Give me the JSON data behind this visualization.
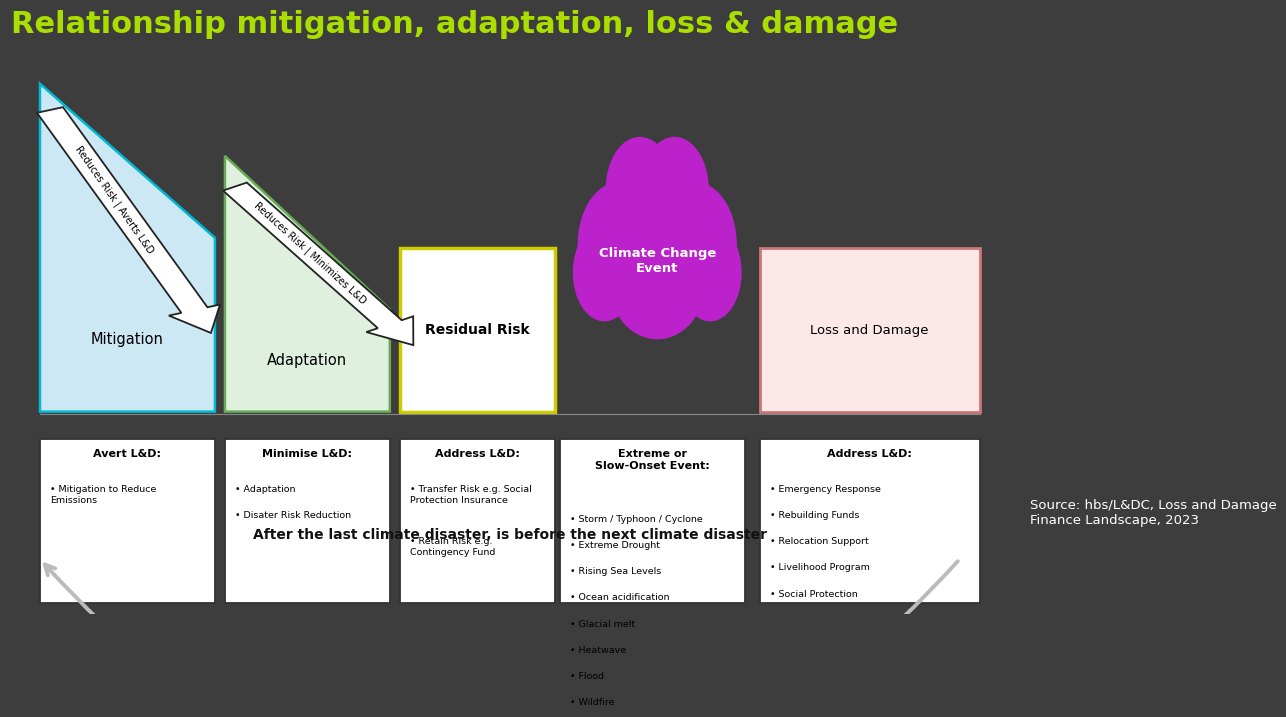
{
  "title": "Relationship mitigation, adaptation, loss & damage",
  "title_color": "#aadd00",
  "bg_color": "#3d3d3d",
  "panel_bg": "#f5f5f5",
  "source_text": "Source: hbs/L&DC, Loss and Damage\nFinance Landscape, 2023",
  "cycle_text": "After the last climate disaster, is before the next climate disaster",
  "mit_fill": "#cce8f5",
  "mit_edge": "#00b8d4",
  "adp_fill": "#dff0df",
  "adp_edge": "#66aa55",
  "res_fill": "#ffffff",
  "res_edge": "#cccc00",
  "lnd_fill": "#fde8e8",
  "lnd_edge": "#cc7777",
  "cloud_color": "#bb22cc",
  "arrow_fill": "#ffffff",
  "arrow_edge": "#222222",
  "box_edge": "#333333"
}
